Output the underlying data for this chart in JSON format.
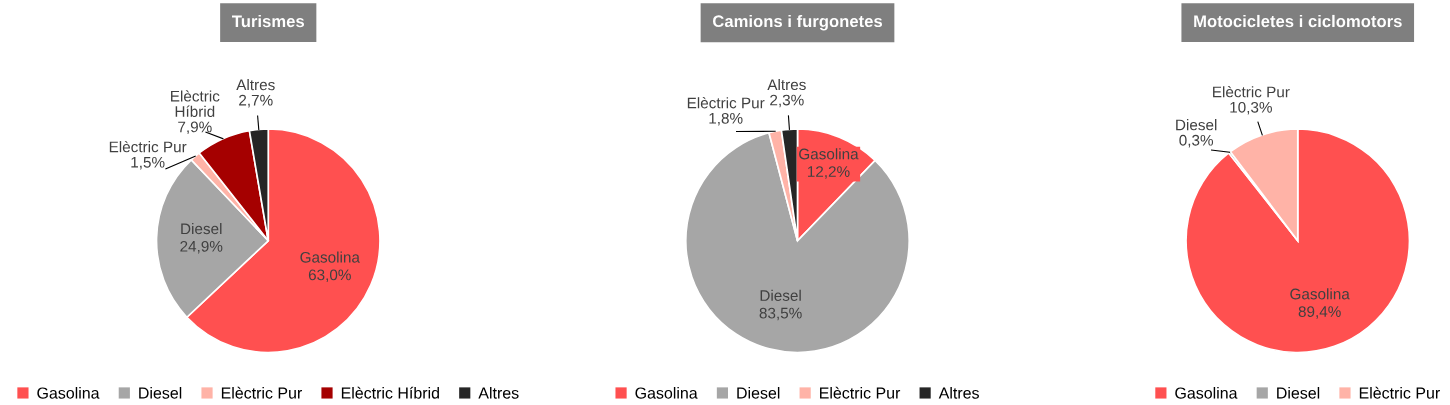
{
  "chart_data": [
    {
      "type": "pie",
      "title": "Turismes",
      "categories": [
        "Gasolina",
        "Diesel",
        "Elèctric Pur",
        "Elèctric Híbrid",
        "Altres"
      ],
      "values": [
        63.0,
        24.9,
        1.5,
        7.9,
        2.7
      ],
      "colors": [
        "#ff5050",
        "#a6a6a6",
        "#ffb3a7",
        "#a50000",
        "#262626"
      ],
      "value_labels": [
        "63,0%",
        "24,9%",
        "1,5%",
        "7,9%",
        "2,7%"
      ],
      "legend": "bottom"
    },
    {
      "type": "pie",
      "title": "Camions i furgonetes",
      "categories": [
        "Gasolina",
        "Diesel",
        "Elèctric Pur",
        "Altres"
      ],
      "values": [
        12.2,
        83.5,
        1.8,
        2.3
      ],
      "colors": [
        "#ff5050",
        "#a6a6a6",
        "#ffb3a7",
        "#262626"
      ],
      "value_labels": [
        "12,2%",
        "83,5%",
        "1,8%",
        "2,3%"
      ],
      "legend": "bottom"
    },
    {
      "type": "pie",
      "title": "Motocicletes i ciclomotors",
      "categories": [
        "Gasolina",
        "Diesel",
        "Elèctric Pur"
      ],
      "values": [
        89.4,
        0.3,
        10.3
      ],
      "colors": [
        "#ff5050",
        "#a6a6a6",
        "#ffb3a7"
      ],
      "value_labels": [
        "89,4%",
        "0,3%",
        "10,3%"
      ],
      "legend": "bottom"
    }
  ]
}
